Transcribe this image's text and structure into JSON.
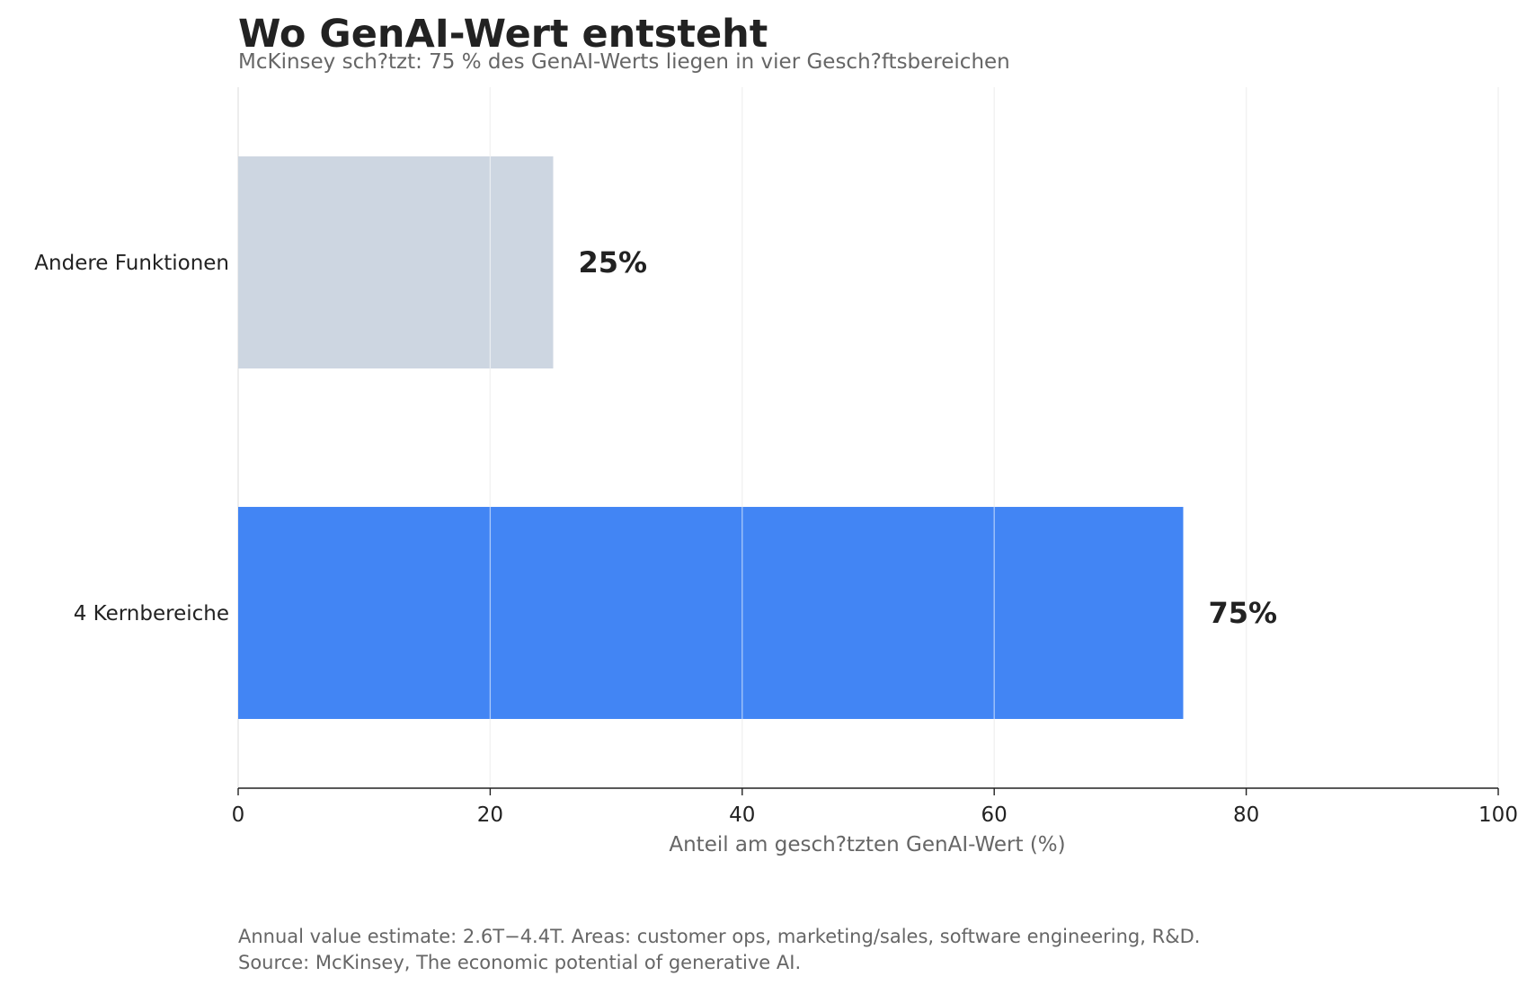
{
  "chart_data": {
    "type": "bar",
    "orientation": "horizontal",
    "title": "Wo GenAI-Wert entsteht",
    "subtitle": "McKinsey sch?tzt: 75 % des GenAI-Werts liegen in vier Gesch?ftsbereichen",
    "categories": [
      "Andere Funktionen",
      "4 Kernbereiche"
    ],
    "values": [
      25,
      75
    ],
    "value_labels": [
      "25%",
      "75%"
    ],
    "colors": [
      "#cdd6e1",
      "#4285f4"
    ],
    "xlabel": "Anteil am gesch?tzten GenAI-Wert (%)",
    "ylabel": "",
    "xlim": [
      0,
      100
    ],
    "xticks": [
      0,
      20,
      40,
      60,
      80,
      100
    ],
    "xtick_labels": [
      "0",
      "20",
      "40",
      "60",
      "80",
      "100"
    ],
    "grid": "vertical",
    "footnote_lines": [
      "Annual value estimate: 2.6T−4.4T. Areas: customer ops, marketing/sales, software engineering, R&D.",
      "Source: McKinsey, The economic potential of generative AI."
    ]
  }
}
